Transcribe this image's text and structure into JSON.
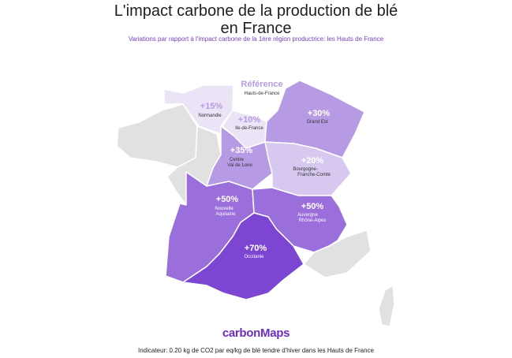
{
  "header": {
    "title_line1": "L'impact carbone de la production de blé",
    "title_line2": "en France",
    "subtitle": "Variations par rapport à l'impact carbone de la 1ère région productrice: les Hauts de France"
  },
  "colors": {
    "reference": "#ffffff",
    "pct10_15": "#ebe3f6",
    "pct20": "#d6c8ee",
    "pct30_35": "#b69ae3",
    "pct50": "#9a6fdc",
    "pct70": "#7c46d3",
    "no_data": "#e1e1e1",
    "brand": "#6c2ec0"
  },
  "regions": [
    {
      "id": "hauts-de-france",
      "value": "Référence",
      "name": "Hauts-de-France",
      "name2": ""
    },
    {
      "id": "normandie",
      "value": "+15%",
      "name": "Normandie",
      "name2": ""
    },
    {
      "id": "ile-de-france",
      "value": "+10%",
      "name": "Ile-de-France",
      "name2": ""
    },
    {
      "id": "grand-est",
      "value": "+30%",
      "name": "Grand Est",
      "name2": ""
    },
    {
      "id": "centre-val-de-loire",
      "value": "+35%",
      "name": "Centre",
      "name2": "Val de Loire"
    },
    {
      "id": "bourgogne-franche-comte",
      "value": "+20%",
      "name": "Bourgogne-",
      "name2": "Franche-Comté"
    },
    {
      "id": "nouvelle-aquitaine",
      "value": "+50%",
      "name": "Nouvelle",
      "name2": "Aquitaine"
    },
    {
      "id": "auvergne-rhone-alpes",
      "value": "+50%",
      "name": "Auvergne",
      "name2": "Rhône-Alpes"
    },
    {
      "id": "occitanie",
      "value": "+70%",
      "name": "Occitanie",
      "name2": ""
    }
  ],
  "brand": "carbonMaps",
  "footnote": "Indicateur: 0.20 kg de CO2 par eq/kg de blé tendre d'hiver dans les Hauts de France"
}
